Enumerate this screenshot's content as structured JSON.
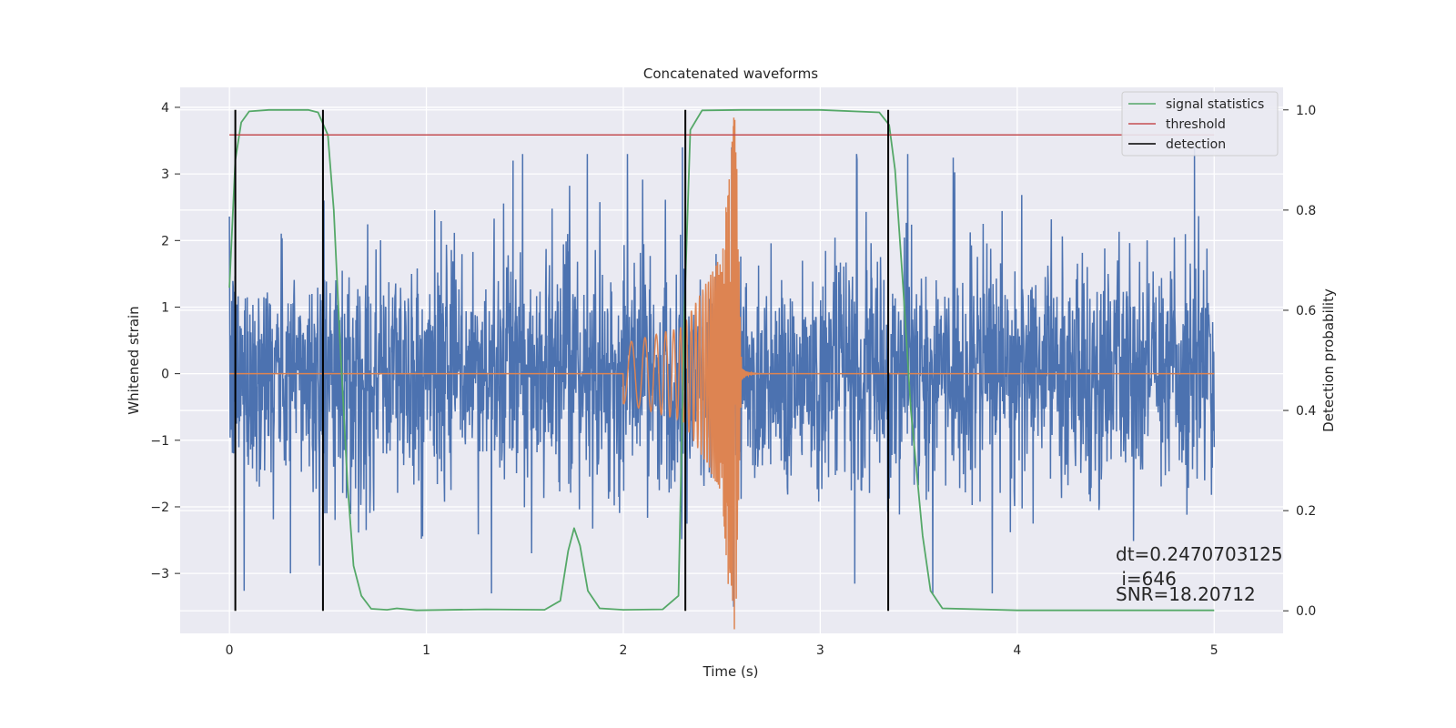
{
  "chart_data": {
    "type": "line",
    "title": "Concatenated waveforms",
    "xlabel": "Time (s)",
    "ylabel": "Whitened strain",
    "y2label": "Detection probability",
    "xlim": [
      -0.25,
      5.35
    ],
    "ylim": [
      -3.9,
      4.3
    ],
    "y2lim": [
      -0.045,
      1.045
    ],
    "xticks": [
      0,
      1,
      2,
      3,
      4,
      5
    ],
    "yticks": [
      -3,
      -2,
      -1,
      0,
      1,
      2,
      3,
      4
    ],
    "y2ticks": [
      0.0,
      0.2,
      0.4,
      0.6,
      0.8,
      1.0
    ],
    "grid": true,
    "legend_position": "top-right",
    "colors": {
      "background": "#eaeaf2",
      "strain": "#4c72b0",
      "template": "#dd8452",
      "signal_statistics": "#55a868",
      "threshold": "#c44e52",
      "detection": "#000000"
    },
    "series": [
      {
        "name": "",
        "axis": "left",
        "description": "whitened strain noise, dense",
        "x_range": [
          0,
          5
        ],
        "approx_amplitude": 1.3,
        "notable_peaks": [
          [
            0.48,
            2.6
          ],
          [
            1.44,
            3.2
          ],
          [
            2.3,
            3.4
          ],
          [
            2.55,
            3.4
          ],
          [
            4.9,
            3.4
          ],
          [
            2.56,
            -3.5
          ],
          [
            0.31,
            -3.0
          ]
        ]
      },
      {
        "name": "",
        "axis": "left",
        "description": "injected chirp waveform",
        "x": [
          0,
          2.0,
          2.3,
          2.5,
          2.55,
          2.57,
          2.6,
          3.0,
          5
        ],
        "envelope": [
          0,
          0.45,
          0.7,
          1.8,
          3.9,
          3.9,
          0.1,
          0.0,
          0
        ]
      },
      {
        "name": "signal statistics",
        "axis": "right",
        "x": [
          0,
          0.03,
          0.06,
          0.1,
          0.2,
          0.4,
          0.45,
          0.5,
          0.53,
          0.56,
          0.6,
          0.63,
          0.67,
          0.72,
          0.8,
          0.85,
          0.95,
          1.3,
          1.6,
          1.68,
          1.72,
          1.75,
          1.78,
          1.82,
          1.88,
          2.0,
          2.2,
          2.28,
          2.31,
          2.34,
          2.4,
          2.6,
          3.0,
          3.3,
          3.35,
          3.38,
          3.42,
          3.46,
          3.52,
          3.56,
          3.62,
          4.0,
          5.0
        ],
        "values": [
          0.645,
          0.9,
          0.975,
          0.997,
          1.0,
          1.0,
          0.995,
          0.95,
          0.8,
          0.55,
          0.25,
          0.09,
          0.03,
          0.004,
          0.002,
          0.005,
          0.001,
          0.003,
          0.002,
          0.02,
          0.12,
          0.165,
          0.13,
          0.04,
          0.005,
          0.002,
          0.003,
          0.03,
          0.6,
          0.96,
          0.999,
          1.0,
          1.0,
          0.995,
          0.97,
          0.88,
          0.65,
          0.4,
          0.15,
          0.04,
          0.005,
          0.001,
          0.001
        ]
      },
      {
        "name": "threshold",
        "axis": "right",
        "x": [
          0,
          5
        ],
        "values": [
          0.95,
          0.95
        ]
      },
      {
        "name": "detection",
        "axis": "right",
        "type": "vlines",
        "x": [
          0.03,
          0.475,
          2.315,
          3.345
        ],
        "y_range": [
          0,
          1
        ]
      }
    ],
    "annotation": {
      "lines": [
        "dt=0.2470703125",
        " i=646",
        "SNR=18.20712"
      ]
    }
  }
}
